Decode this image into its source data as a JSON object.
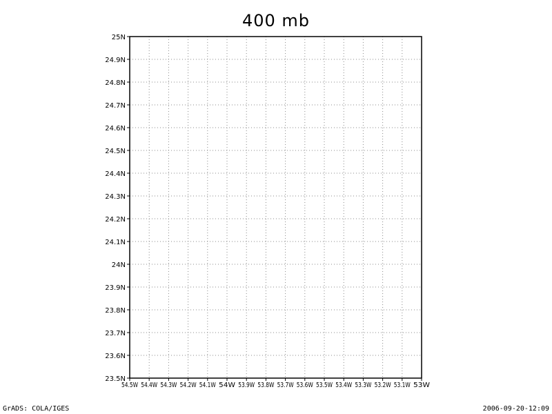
{
  "title": "400 mb",
  "footer": {
    "left": "GrADS: COLA/IGES",
    "right": "2006-09-20-12:09"
  },
  "map": {
    "projection": "lat-lon",
    "lon_range": [
      -54.5,
      -53.0
    ],
    "lat_range": [
      23.5,
      25.0
    ],
    "grid": "dotted",
    "contours": [],
    "lon_ticks": [
      {
        "value": -54.5,
        "label": "54.5W"
      },
      {
        "value": -54.4,
        "label": "54.4W"
      },
      {
        "value": -54.3,
        "label": "54.3W"
      },
      {
        "value": -54.2,
        "label": "54.2W"
      },
      {
        "value": -54.1,
        "label": "54.1W"
      },
      {
        "value": -54.0,
        "label": "54W"
      },
      {
        "value": -53.9,
        "label": "53.9W"
      },
      {
        "value": -53.8,
        "label": "53.8W"
      },
      {
        "value": -53.7,
        "label": "53.7W"
      },
      {
        "value": -53.6,
        "label": "53.6W"
      },
      {
        "value": -53.5,
        "label": "53.5W"
      },
      {
        "value": -53.4,
        "label": "53.4W"
      },
      {
        "value": -53.3,
        "label": "53.3W"
      },
      {
        "value": -53.2,
        "label": "53.2W"
      },
      {
        "value": -53.1,
        "label": "53.1W"
      },
      {
        "value": -53.0,
        "label": "53W"
      }
    ],
    "lat_ticks": [
      {
        "value": 25.0,
        "label": "25N"
      },
      {
        "value": 24.9,
        "label": "24.9N"
      },
      {
        "value": 24.8,
        "label": "24.8N"
      },
      {
        "value": 24.7,
        "label": "24.7N"
      },
      {
        "value": 24.6,
        "label": "24.6N"
      },
      {
        "value": 24.5,
        "label": "24.5N"
      },
      {
        "value": 24.4,
        "label": "24.4N"
      },
      {
        "value": 24.3,
        "label": "24.3N"
      },
      {
        "value": 24.2,
        "label": "24.2N"
      },
      {
        "value": 24.1,
        "label": "24.1N"
      },
      {
        "value": 24.0,
        "label": "24N"
      },
      {
        "value": 23.9,
        "label": "23.9N"
      },
      {
        "value": 23.8,
        "label": "23.8N"
      },
      {
        "value": 23.7,
        "label": "23.7N"
      },
      {
        "value": 23.6,
        "label": "23.6N"
      },
      {
        "value": 23.5,
        "label": "23.5N"
      }
    ]
  }
}
